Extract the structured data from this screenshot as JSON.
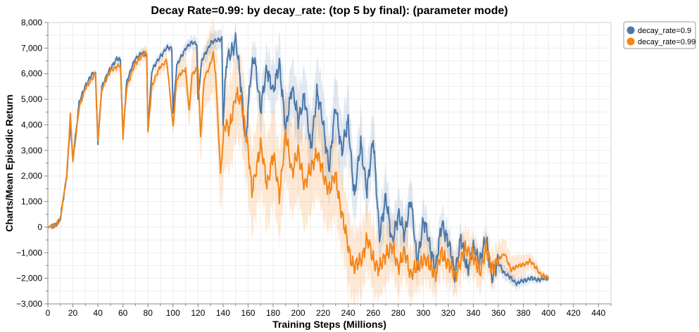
{
  "chart_data": {
    "type": "line",
    "title": "Decay Rate=0.99: by decay_rate: (top 5 by final): (parameter mode)",
    "xlabel": "Training Steps (Millions)",
    "ylabel": "Charts/Mean Episodic Return",
    "xlim": [
      0,
      450
    ],
    "ylim": [
      -3000,
      8000
    ],
    "x_ticks": [
      0,
      20,
      40,
      60,
      80,
      100,
      120,
      140,
      160,
      180,
      200,
      220,
      240,
      260,
      280,
      300,
      320,
      340,
      360,
      380,
      400,
      420,
      440
    ],
    "y_ticks": [
      -3000,
      -2000,
      -1000,
      0,
      1000,
      2000,
      3000,
      4000,
      5000,
      6000,
      7000,
      8000
    ],
    "y_tick_labels": [
      "−3,000",
      "−2,000",
      "−1,000",
      "0",
      "1,000",
      "2,000",
      "3,000",
      "4,000",
      "5,000",
      "6,000",
      "7,000",
      "8,000"
    ],
    "grid": true,
    "legend_position": "top-right",
    "series": [
      {
        "name": "decay_rate=0.9",
        "color": "#4c78a8",
        "band_color": "#4c78a8",
        "points": [
          [
            0,
            0
          ],
          [
            5,
            50
          ],
          [
            10,
            300
          ],
          [
            15,
            2000
          ],
          [
            18,
            4000
          ],
          [
            20,
            2600
          ],
          [
            25,
            4900
          ],
          [
            30,
            5500
          ],
          [
            35,
            6000
          ],
          [
            38,
            6000
          ],
          [
            40,
            3300
          ],
          [
            43,
            5500
          ],
          [
            50,
            6200
          ],
          [
            55,
            6600
          ],
          [
            58,
            6500
          ],
          [
            60,
            3600
          ],
          [
            63,
            5700
          ],
          [
            70,
            6600
          ],
          [
            75,
            6800
          ],
          [
            79,
            6700
          ],
          [
            80,
            3800
          ],
          [
            83,
            6100
          ],
          [
            90,
            6700
          ],
          [
            95,
            7000
          ],
          [
            99,
            7000
          ],
          [
            100,
            4500
          ],
          [
            103,
            6300
          ],
          [
            110,
            7000
          ],
          [
            115,
            7200
          ],
          [
            119,
            7200
          ],
          [
            120,
            5000
          ],
          [
            123,
            6500
          ],
          [
            130,
            7200
          ],
          [
            135,
            7300
          ],
          [
            139,
            7400
          ],
          [
            140,
            4200
          ],
          [
            143,
            6500
          ],
          [
            150,
            7300
          ],
          [
            152,
            6500
          ],
          [
            155,
            5200
          ],
          [
            158,
            3300
          ],
          [
            162,
            5800
          ],
          [
            165,
            6800
          ],
          [
            170,
            4500
          ],
          [
            175,
            6300
          ],
          [
            180,
            5200
          ],
          [
            185,
            6500
          ],
          [
            190,
            3700
          ],
          [
            195,
            5600
          ],
          [
            200,
            4100
          ],
          [
            205,
            5200
          ],
          [
            210,
            3000
          ],
          [
            215,
            5300
          ],
          [
            220,
            4000
          ],
          [
            225,
            2300
          ],
          [
            230,
            4800
          ],
          [
            235,
            2900
          ],
          [
            240,
            4200
          ],
          [
            245,
            1100
          ],
          [
            250,
            3400
          ],
          [
            255,
            1300
          ],
          [
            260,
            3600
          ],
          [
            265,
            -500
          ],
          [
            270,
            1300
          ],
          [
            275,
            -700
          ],
          [
            280,
            600
          ],
          [
            285,
            -400
          ],
          [
            290,
            1200
          ],
          [
            295,
            -1500
          ],
          [
            300,
            300
          ],
          [
            305,
            -700
          ],
          [
            310,
            -1600
          ],
          [
            315,
            200
          ],
          [
            320,
            -600
          ],
          [
            325,
            -1800
          ],
          [
            330,
            -500
          ],
          [
            335,
            -1600
          ],
          [
            340,
            -900
          ],
          [
            345,
            -1300
          ],
          [
            350,
            -500
          ],
          [
            355,
            -1900
          ],
          [
            360,
            -1400
          ],
          [
            365,
            -1800
          ],
          [
            370,
            -2000
          ],
          [
            375,
            -2200
          ],
          [
            380,
            -2100
          ],
          [
            385,
            -2000
          ],
          [
            390,
            -2050
          ],
          [
            400,
            -2000
          ]
        ],
        "band_halfwidth": [
          [
            0,
            60
          ],
          [
            100,
            150
          ],
          [
            150,
            400
          ],
          [
            180,
            900
          ],
          [
            220,
            1200
          ],
          [
            260,
            1000
          ],
          [
            300,
            700
          ],
          [
            350,
            300
          ],
          [
            400,
            100
          ]
        ]
      },
      {
        "name": "decay_rate=0.99",
        "color": "#f58518",
        "band_color": "#f58518",
        "points": [
          [
            0,
            0
          ],
          [
            5,
            50
          ],
          [
            10,
            300
          ],
          [
            15,
            2000
          ],
          [
            18,
            4400
          ],
          [
            20,
            2500
          ],
          [
            25,
            4700
          ],
          [
            30,
            5400
          ],
          [
            35,
            5800
          ],
          [
            38,
            6000
          ],
          [
            40,
            3300
          ],
          [
            43,
            5400
          ],
          [
            50,
            6100
          ],
          [
            55,
            6300
          ],
          [
            58,
            6300
          ],
          [
            60,
            3500
          ],
          [
            63,
            5500
          ],
          [
            70,
            6400
          ],
          [
            75,
            6700
          ],
          [
            79,
            6800
          ],
          [
            80,
            3700
          ],
          [
            83,
            5500
          ],
          [
            90,
            6300
          ],
          [
            95,
            6500
          ],
          [
            98,
            5000
          ],
          [
            100,
            3900
          ],
          [
            103,
            5800
          ],
          [
            110,
            6200
          ],
          [
            113,
            4500
          ],
          [
            115,
            5900
          ],
          [
            120,
            6300
          ],
          [
            122,
            3500
          ],
          [
            125,
            5800
          ],
          [
            130,
            6400
          ],
          [
            132,
            6800
          ],
          [
            134,
            6000
          ],
          [
            138,
            2100
          ],
          [
            141,
            4000
          ],
          [
            145,
            3800
          ],
          [
            150,
            5200
          ],
          [
            155,
            4800
          ],
          [
            160,
            3100
          ],
          [
            163,
            1300
          ],
          [
            167,
            2500
          ],
          [
            170,
            3200
          ],
          [
            175,
            1700
          ],
          [
            180,
            2800
          ],
          [
            185,
            1300
          ],
          [
            190,
            3600
          ],
          [
            195,
            2200
          ],
          [
            200,
            2900
          ],
          [
            205,
            1700
          ],
          [
            210,
            2200
          ],
          [
            215,
            3000
          ],
          [
            220,
            2000
          ],
          [
            225,
            1500
          ],
          [
            230,
            2000
          ],
          [
            235,
            500
          ],
          [
            240,
            -800
          ],
          [
            245,
            -1600
          ],
          [
            250,
            -1300
          ],
          [
            255,
            -500
          ],
          [
            260,
            -1200
          ],
          [
            265,
            -1700
          ],
          [
            270,
            -1000
          ],
          [
            275,
            -800
          ],
          [
            280,
            -1500
          ],
          [
            285,
            -1000
          ],
          [
            290,
            -1800
          ],
          [
            295,
            -1600
          ],
          [
            300,
            -1200
          ],
          [
            305,
            -1500
          ],
          [
            310,
            -1800
          ],
          [
            315,
            -1000
          ],
          [
            320,
            -1400
          ],
          [
            325,
            -1900
          ],
          [
            330,
            -1300
          ],
          [
            335,
            -800
          ],
          [
            340,
            -1200
          ],
          [
            345,
            -1700
          ],
          [
            350,
            -900
          ],
          [
            355,
            -1600
          ],
          [
            360,
            -1300
          ],
          [
            365,
            -1000
          ],
          [
            370,
            -1700
          ],
          [
            375,
            -1500
          ],
          [
            380,
            -1500
          ],
          [
            385,
            -1300
          ],
          [
            390,
            -1600
          ],
          [
            395,
            -1900
          ],
          [
            400,
            -2000
          ]
        ],
        "band_halfwidth": [
          [
            0,
            60
          ],
          [
            100,
            300
          ],
          [
            140,
            1500
          ],
          [
            180,
            1600
          ],
          [
            220,
            1500
          ],
          [
            260,
            1100
          ],
          [
            300,
            800
          ],
          [
            350,
            700
          ],
          [
            400,
            100
          ]
        ]
      }
    ]
  }
}
